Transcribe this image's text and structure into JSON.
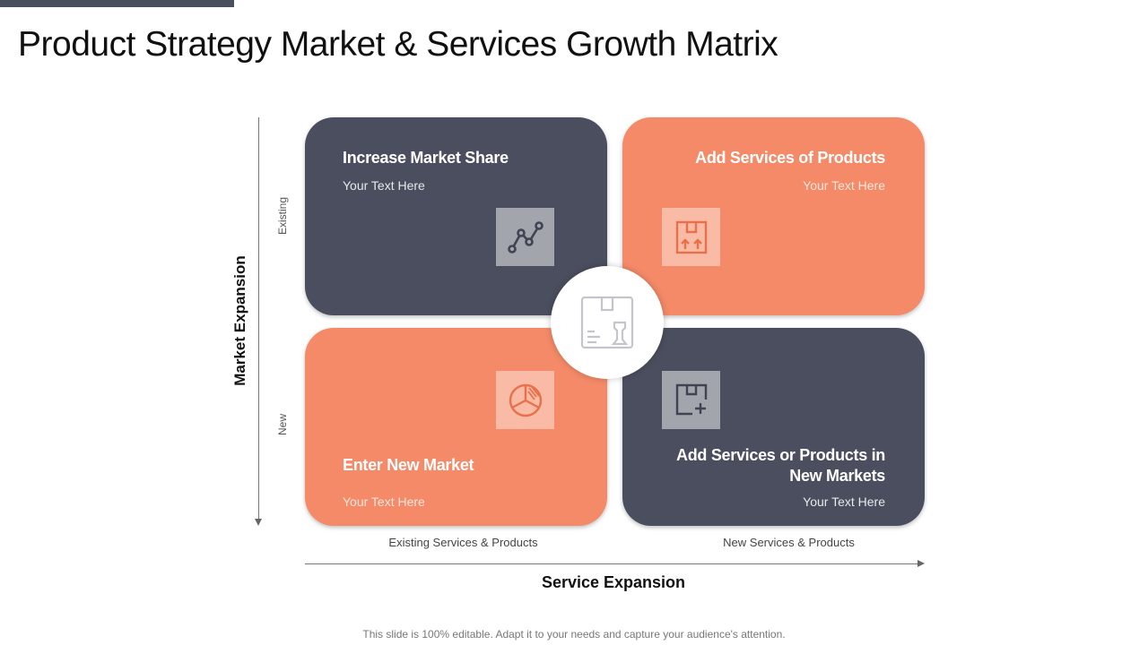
{
  "page": {
    "title": "Product Strategy Market & Services Growth Matrix"
  },
  "colors": {
    "dark": "#4a4e5e",
    "accent": "#f48a68"
  },
  "matrix": {
    "top_left": {
      "heading": "Increase Market Share",
      "text": "Your Text Here",
      "icon": "line-chart-icon"
    },
    "top_right": {
      "heading": "Add Services of Products",
      "text": "Your Text Here",
      "icon": "box-upload-icon"
    },
    "bottom_left": {
      "heading": "Enter New Market",
      "text": "Your Text Here",
      "icon": "pie-chart-icon"
    },
    "bottom_right": {
      "heading_line1": "Add Services or Products in",
      "heading_line2": "New Markets",
      "text": "Your Text Here",
      "icon": "box-add-icon"
    },
    "center": {
      "icon": "box-chess-rook-icon"
    }
  },
  "axes": {
    "vertical": {
      "title": "Market Expansion",
      "top_label": "Existing",
      "bottom_label": "New"
    },
    "horizontal": {
      "title": "Service Expansion",
      "left_label": "Existing Services & Products",
      "right_label": "New Services & Products"
    }
  },
  "footer": {
    "text": "This slide is 100% editable. Adapt it to your needs and capture your audience's attention."
  }
}
